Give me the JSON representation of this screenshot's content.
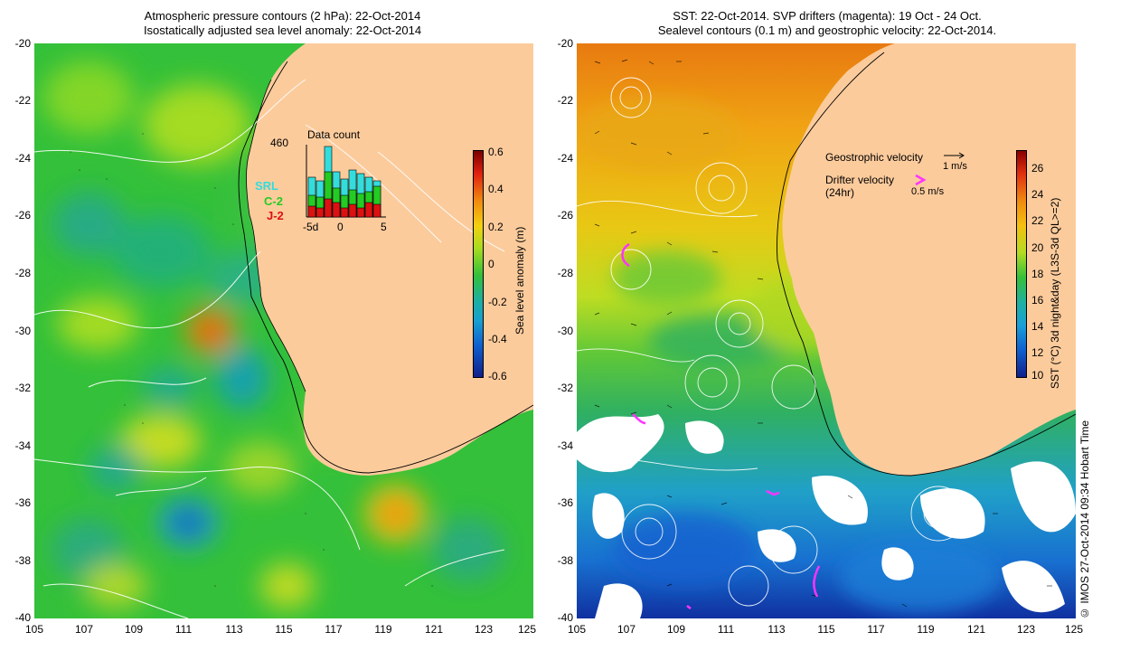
{
  "left_panel": {
    "title_line1": "Atmospheric pressure contours (2 hPa): 22-Oct-2014",
    "title_line2": "Isostatically adjusted sea level anomaly: 22-Oct-2014",
    "colorbar": {
      "label": "Sea level anomaly (m)",
      "ticks": [
        "0.6",
        "0.4",
        "0.2",
        "0",
        "-0.2",
        "-0.4",
        "-0.6"
      ],
      "min": -0.6,
      "max": 0.6
    },
    "inset": {
      "title": "Data count",
      "max_label": "460",
      "x_ticks": [
        "-5d",
        "0",
        "5"
      ],
      "legend": [
        {
          "label": "SRL",
          "color": "#33dddd"
        },
        {
          "label": "C-2",
          "color": "#22cc22"
        },
        {
          "label": "J-2",
          "color": "#dd1111"
        }
      ]
    }
  },
  "right_panel": {
    "title_line1": "SST: 22-Oct-2014. SVP drifters (magenta): 19 Oct - 24 Oct.",
    "title_line2": "Sealevel contours (0.1 m) and geostrophic velocity: 22-Oct-2014.",
    "colorbar": {
      "label": "SST (°C) 3d night&day (L3S-3d QL>=2)",
      "ticks": [
        "26",
        "24",
        "22",
        "20",
        "18",
        "16",
        "14",
        "12",
        "10"
      ],
      "min": 10,
      "max": 27
    },
    "legend": {
      "geo_label": "Geostrophic velocity",
      "geo_scale": "1 m/s",
      "drifter_label_line1": "Drifter velocity",
      "drifter_label_line2": "(24hr)",
      "drifter_scale": "0.5 m/s"
    }
  },
  "axes": {
    "x_ticks": [
      "105",
      "107",
      "109",
      "111",
      "113",
      "115",
      "117",
      "119",
      "121",
      "123",
      "125"
    ],
    "y_ticks": [
      "-20",
      "-22",
      "-24",
      "-26",
      "-28",
      "-30",
      "-32",
      "-34",
      "-36",
      "-38",
      "-40"
    ]
  },
  "credit": "© IMOS 27-Oct-2014 09:34 Hobart Time",
  "colors": {
    "land": "#fccb9c",
    "sla_base": "#34c03a",
    "drifter": "#ff33ff"
  }
}
